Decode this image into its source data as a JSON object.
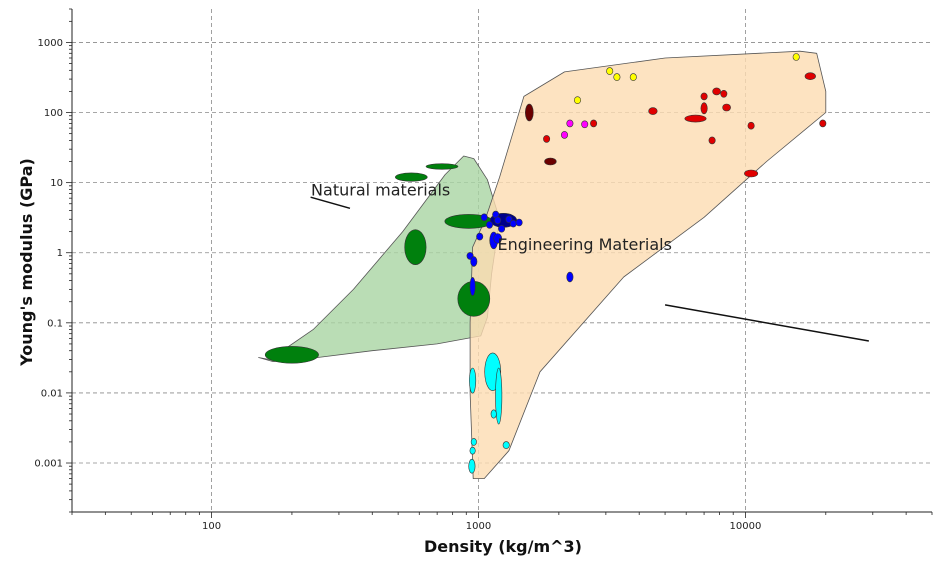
{
  "chart_data": {
    "type": "scatter",
    "title": "",
    "xlabel": "Density (kg/m^3)",
    "ylabel": "Young's modulus (GPa)",
    "xscale": "log",
    "yscale": "log",
    "xlim": [
      30,
      50000
    ],
    "ylim": [
      0.0002,
      3000
    ],
    "grid": true,
    "x_ticks": [
      {
        "value": 100,
        "label": "100"
      },
      {
        "value": 1000,
        "label": "1000"
      },
      {
        "value": 10000,
        "label": "10000"
      }
    ],
    "y_ticks": [
      {
        "value": 1000,
        "label": "1000"
      },
      {
        "value": 100,
        "label": "100"
      },
      {
        "value": 10,
        "label": "10"
      },
      {
        "value": 1,
        "label": "1"
      },
      {
        "value": 0.1,
        "label": "0.1"
      },
      {
        "value": 0.01,
        "label": "0.01"
      },
      {
        "value": 0.001,
        "label": "0.001"
      }
    ],
    "envelopes": [
      {
        "label": "Natural materials",
        "fill": "#a9d4a3",
        "polygon": [
          [
            165,
            0.03
          ],
          [
            240,
            0.08
          ],
          [
            340,
            0.3
          ],
          [
            520,
            2
          ],
          [
            750,
            13
          ],
          [
            880,
            24
          ],
          [
            960,
            22
          ],
          [
            1080,
            11
          ],
          [
            1200,
            3
          ],
          [
            1120,
            0.5
          ],
          [
            1080,
            0.12
          ],
          [
            1020,
            0.065
          ],
          [
            700,
            0.05
          ],
          [
            400,
            0.04
          ],
          [
            250,
            0.032
          ],
          [
            170,
            0.028
          ],
          [
            150,
            0.032
          ]
        ],
        "annotation": {
          "text": "Natural materials",
          "text_at": [
            430,
            6.5
          ],
          "line_from": [
            330,
            4.3
          ],
          "line_to": [
            235,
            6.2
          ]
        }
      },
      {
        "label": "Engineering Materials",
        "fill": "#fddcb1",
        "polygon": [
          [
            955,
            0.0006
          ],
          [
            930,
            0.01
          ],
          [
            930,
            0.1
          ],
          [
            950,
            1.2
          ],
          [
            1060,
            3
          ],
          [
            1200,
            12
          ],
          [
            1480,
            170
          ],
          [
            2100,
            380
          ],
          [
            5000,
            600
          ],
          [
            16000,
            750
          ],
          [
            18500,
            700
          ],
          [
            20000,
            200
          ],
          [
            20000,
            100
          ],
          [
            12000,
            20
          ],
          [
            7000,
            3.2
          ],
          [
            3500,
            0.45
          ],
          [
            1700,
            0.02
          ],
          [
            1300,
            0.0015
          ],
          [
            1050,
            0.0006
          ]
        ],
        "annotation": {
          "text": "Engineering Materials",
          "text_at": [
            2500,
            1.1
          ],
          "line_from": [
            5000,
            0.18
          ],
          "line_to": [
            29000,
            0.055
          ]
        }
      }
    ],
    "series": [
      {
        "name": "",
        "color": "#00800d",
        "points": [
          {
            "x": 200,
            "y": 0.035,
            "rx": 0.1,
            "ry": 0.12
          },
          {
            "x": 560,
            "y": 12,
            "rx": 0.06,
            "ry": 0.06
          },
          {
            "x": 730,
            "y": 17,
            "rx": 0.06,
            "ry": 0.04
          },
          {
            "x": 580,
            "y": 1.2,
            "rx": 0.04,
            "ry": 0.25
          },
          {
            "x": 960,
            "y": 0.22,
            "rx": 0.06,
            "ry": 0.25
          },
          {
            "x": 920,
            "y": 2.8,
            "rx": 0.09,
            "ry": 0.1
          }
        ]
      },
      {
        "name": "",
        "color": "#00008b",
        "points": [
          {
            "x": 1240,
            "y": 2.9,
            "rx": 0.05,
            "ry": 0.1
          }
        ]
      },
      {
        "name": "",
        "color": "#0000ff",
        "points": [
          {
            "x": 1050,
            "y": 3.2,
            "rx": 0.012,
            "ry": 0.05
          },
          {
            "x": 1100,
            "y": 2.5,
            "rx": 0.012,
            "ry": 0.05
          },
          {
            "x": 1160,
            "y": 3.5,
            "rx": 0.012,
            "ry": 0.05
          },
          {
            "x": 1220,
            "y": 2.2,
            "rx": 0.012,
            "ry": 0.05
          },
          {
            "x": 1300,
            "y": 3.0,
            "rx": 0.012,
            "ry": 0.05
          },
          {
            "x": 1350,
            "y": 2.6,
            "rx": 0.012,
            "ry": 0.05
          },
          {
            "x": 1420,
            "y": 2.7,
            "rx": 0.012,
            "ry": 0.05
          },
          {
            "x": 1180,
            "y": 2.9,
            "rx": 0.012,
            "ry": 0.05
          },
          {
            "x": 1010,
            "y": 1.7,
            "rx": 0.012,
            "ry": 0.05
          },
          {
            "x": 1140,
            "y": 1.5,
            "rx": 0.015,
            "ry": 0.12
          },
          {
            "x": 1180,
            "y": 1.6,
            "rx": 0.015,
            "ry": 0.07
          },
          {
            "x": 930,
            "y": 0.9,
            "rx": 0.012,
            "ry": 0.05
          },
          {
            "x": 960,
            "y": 0.75,
            "rx": 0.012,
            "ry": 0.07
          },
          {
            "x": 950,
            "y": 0.33,
            "rx": 0.01,
            "ry": 0.13
          },
          {
            "x": 2200,
            "y": 0.45,
            "rx": 0.012,
            "ry": 0.07
          }
        ]
      },
      {
        "name": "",
        "color": "#00ffff",
        "points": [
          {
            "x": 950,
            "y": 0.015,
            "rx": 0.012,
            "ry": 0.18
          },
          {
            "x": 1130,
            "y": 0.02,
            "rx": 0.03,
            "ry": 0.27
          },
          {
            "x": 1190,
            "y": 0.009,
            "rx": 0.012,
            "ry": 0.4
          },
          {
            "x": 1140,
            "y": 0.005,
            "rx": 0.01,
            "ry": 0.06
          },
          {
            "x": 960,
            "y": 0.002,
            "rx": 0.01,
            "ry": 0.05
          },
          {
            "x": 950,
            "y": 0.0015,
            "rx": 0.01,
            "ry": 0.05
          },
          {
            "x": 945,
            "y": 0.0009,
            "rx": 0.012,
            "ry": 0.1
          },
          {
            "x": 1270,
            "y": 0.0018,
            "rx": 0.012,
            "ry": 0.05
          }
        ]
      },
      {
        "name": "",
        "color": "#6b0000",
        "points": [
          {
            "x": 1550,
            "y": 100,
            "rx": 0.015,
            "ry": 0.12
          },
          {
            "x": 1860,
            "y": 20,
            "rx": 0.022,
            "ry": 0.05
          }
        ]
      },
      {
        "name": "",
        "color": "#e00000",
        "points": [
          {
            "x": 1800,
            "y": 42,
            "rx": 0.012,
            "ry": 0.05
          },
          {
            "x": 2700,
            "y": 70,
            "rx": 0.012,
            "ry": 0.05
          },
          {
            "x": 4500,
            "y": 105,
            "rx": 0.016,
            "ry": 0.05
          },
          {
            "x": 6500,
            "y": 82,
            "rx": 0.04,
            "ry": 0.05
          },
          {
            "x": 7000,
            "y": 170,
            "rx": 0.012,
            "ry": 0.05
          },
          {
            "x": 7000,
            "y": 115,
            "rx": 0.012,
            "ry": 0.08
          },
          {
            "x": 7500,
            "y": 40,
            "rx": 0.012,
            "ry": 0.05
          },
          {
            "x": 7800,
            "y": 200,
            "rx": 0.015,
            "ry": 0.05
          },
          {
            "x": 8300,
            "y": 185,
            "rx": 0.012,
            "ry": 0.05
          },
          {
            "x": 8500,
            "y": 118,
            "rx": 0.015,
            "ry": 0.05
          },
          {
            "x": 10500,
            "y": 65,
            "rx": 0.012,
            "ry": 0.05
          },
          {
            "x": 10500,
            "y": 13.5,
            "rx": 0.025,
            "ry": 0.05
          },
          {
            "x": 17500,
            "y": 330,
            "rx": 0.02,
            "ry": 0.05
          },
          {
            "x": 19500,
            "y": 70,
            "rx": 0.012,
            "ry": 0.05
          }
        ]
      },
      {
        "name": "",
        "color": "#ff00ff",
        "points": [
          {
            "x": 2100,
            "y": 48,
            "rx": 0.012,
            "ry": 0.05
          },
          {
            "x": 2200,
            "y": 70,
            "rx": 0.012,
            "ry": 0.05
          },
          {
            "x": 2500,
            "y": 68,
            "rx": 0.012,
            "ry": 0.05
          }
        ]
      },
      {
        "name": "",
        "color": "#ffff00",
        "points": [
          {
            "x": 2350,
            "y": 150,
            "rx": 0.012,
            "ry": 0.05
          },
          {
            "x": 3100,
            "y": 390,
            "rx": 0.012,
            "ry": 0.05
          },
          {
            "x": 3300,
            "y": 320,
            "rx": 0.012,
            "ry": 0.05
          },
          {
            "x": 3800,
            "y": 320,
            "rx": 0.012,
            "ry": 0.05
          },
          {
            "x": 15500,
            "y": 620,
            "rx": 0.012,
            "ry": 0.05
          }
        ]
      }
    ]
  }
}
